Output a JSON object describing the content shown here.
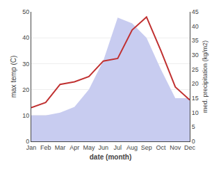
{
  "chart_data": {
    "type": "line",
    "categories": [
      "Jan",
      "Feb",
      "Mar",
      "Apr",
      "May",
      "Jun",
      "Jul",
      "Aug",
      "Sep",
      "Oct",
      "Nov",
      "Dec"
    ],
    "series": [
      {
        "type": "area",
        "axis": "y2",
        "color": "#c8ccf0",
        "values": [
          9,
          9,
          10,
          12,
          18,
          28,
          43,
          41,
          36,
          25,
          15,
          15
        ]
      },
      {
        "type": "line",
        "color": "#c03030",
        "values": [
          13,
          15,
          22,
          23,
          25,
          31,
          32,
          43,
          48,
          35,
          21,
          16
        ]
      }
    ],
    "xlabel": "date (month)",
    "ylabel": "max temp (C)",
    "y2label": "med. precipitation (kg/m2)",
    "ylim": [
      0,
      50
    ],
    "yticks": [
      0,
      10,
      20,
      30,
      40,
      50
    ],
    "y2lim": [
      0,
      45
    ],
    "y2ticks": [
      0,
      5,
      10,
      15,
      20,
      25,
      30,
      35,
      40,
      45
    ],
    "grid": true
  }
}
